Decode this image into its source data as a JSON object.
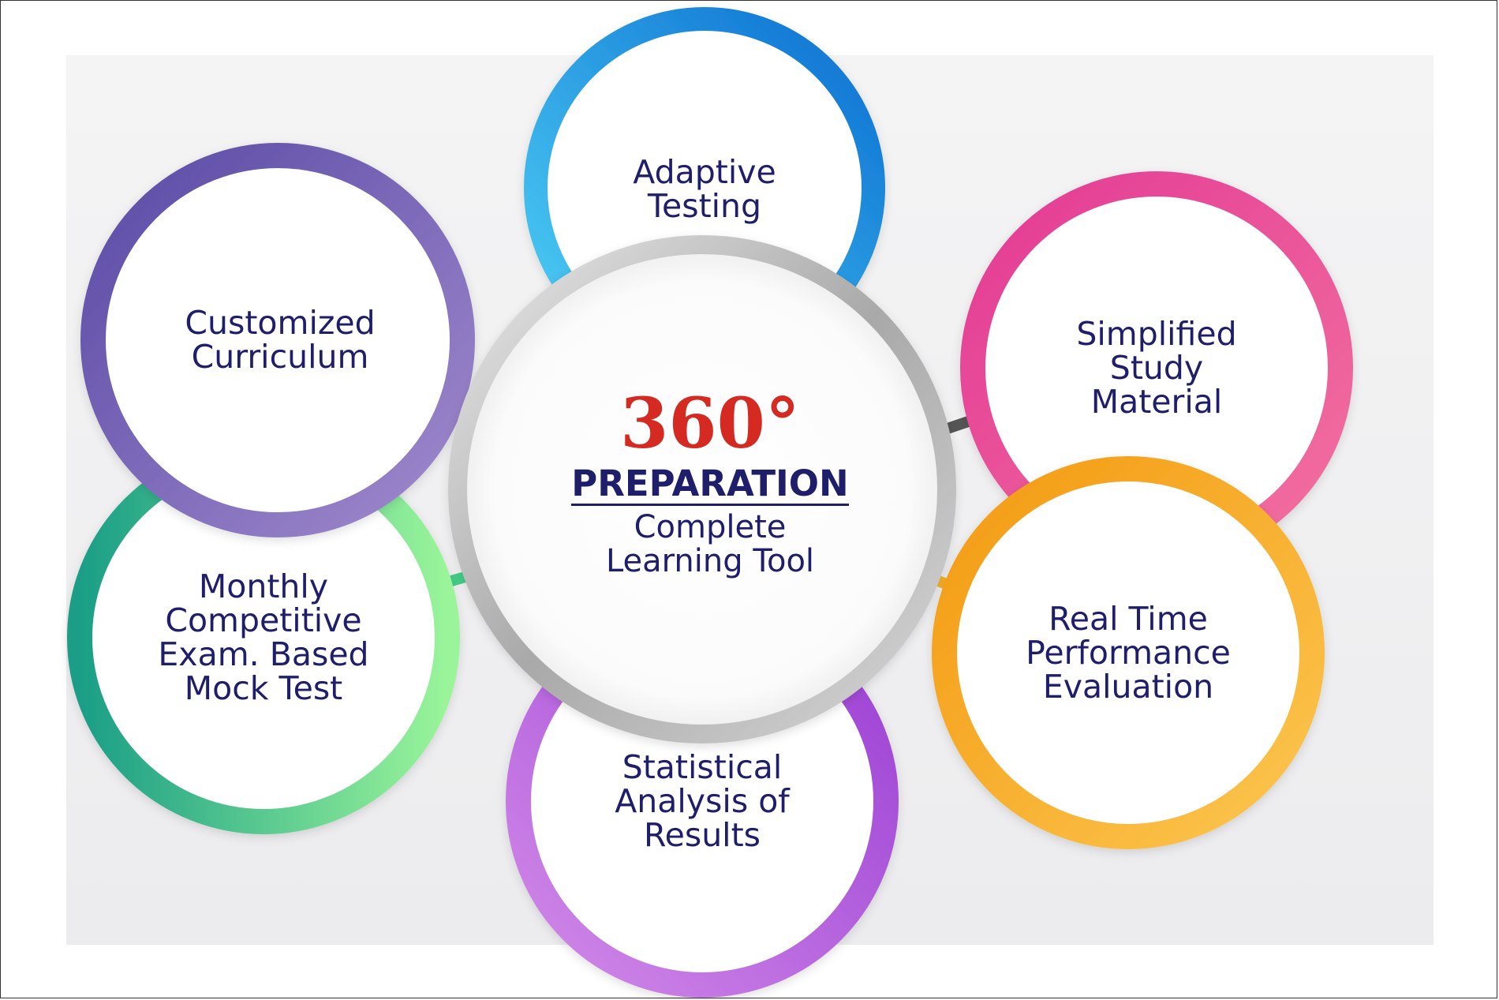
{
  "center": {
    "headline": "360°",
    "title": "PREPARATION",
    "subtitle_line1": "Complete",
    "subtitle_line2": "Learning Tool"
  },
  "nodes": [
    {
      "id": "adaptive-testing",
      "label": "Adaptive\nTesting",
      "colors": [
        "#1aa4ea",
        "#3ccbf3"
      ]
    },
    {
      "id": "simplified-study-material",
      "label": "Simplified\nStudy\nMaterial",
      "colors": [
        "#e8439b",
        "#f07ab6"
      ]
    },
    {
      "id": "real-time-performance-evaluation",
      "label": "Real Time\nPerformance\nEvaluation",
      "colors": [
        "#f5a21e",
        "#fbc24c"
      ]
    },
    {
      "id": "statistical-analysis-of-results",
      "label": "Statistical\nAnalysis of\nResults",
      "colors": [
        "#a64fd8",
        "#c97ee6"
      ]
    },
    {
      "id": "monthly-mock-test",
      "label": "Monthly\nCompetitive\nExam. Based\nMock Test",
      "colors": [
        "#22b88a",
        "#7be89a"
      ]
    },
    {
      "id": "customized-curriculum",
      "label": "Customized\nCurriculum",
      "colors": [
        "#6656ad",
        "#9a84c9"
      ]
    }
  ]
}
